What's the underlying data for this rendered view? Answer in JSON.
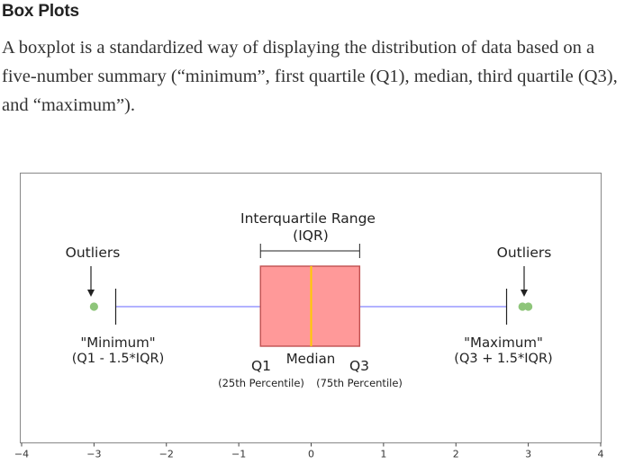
{
  "article": {
    "heading": "Box Plots",
    "paragraph": "A boxplot is a standardized way of displaying the distribution of data based on a five-number summary (“minimum”, first quartile (Q1), median, third quartile (Q3), and “maximum”)."
  },
  "chart_data": {
    "type": "box",
    "xlim": [
      -4,
      4
    ],
    "x_ticks": [
      "−4",
      "−3",
      "−2",
      "−1",
      "0",
      "1",
      "2",
      "3",
      "4"
    ],
    "box": {
      "whisker_low": -2.7,
      "q1": -0.7,
      "median": 0,
      "q3": 0.67,
      "whisker_high": 2.7,
      "outliers_low": [
        -3.0
      ],
      "outliers_high": [
        2.92,
        3.0
      ]
    },
    "colors": {
      "box_fill": "#ff9999",
      "box_edge": "#c05050",
      "median": "#ffcc00",
      "whisker": "#9999ff",
      "outlier": "#8ec57a"
    },
    "annotations": {
      "iqr_line1": "Interquartile Range",
      "iqr_line2": "(IQR)",
      "outliers_left": "Outliers",
      "outliers_right": "Outliers",
      "minimum_line1": "\"Minimum\"",
      "minimum_line2": "(Q1 - 1.5*IQR)",
      "maximum_line1": "\"Maximum\"",
      "maximum_line2": "(Q3 + 1.5*IQR)",
      "q1": "Q1",
      "median": "Median",
      "q3": "Q3",
      "q1_percentile": "(25th Percentile)",
      "q3_percentile": "(75th Percentile)"
    }
  }
}
